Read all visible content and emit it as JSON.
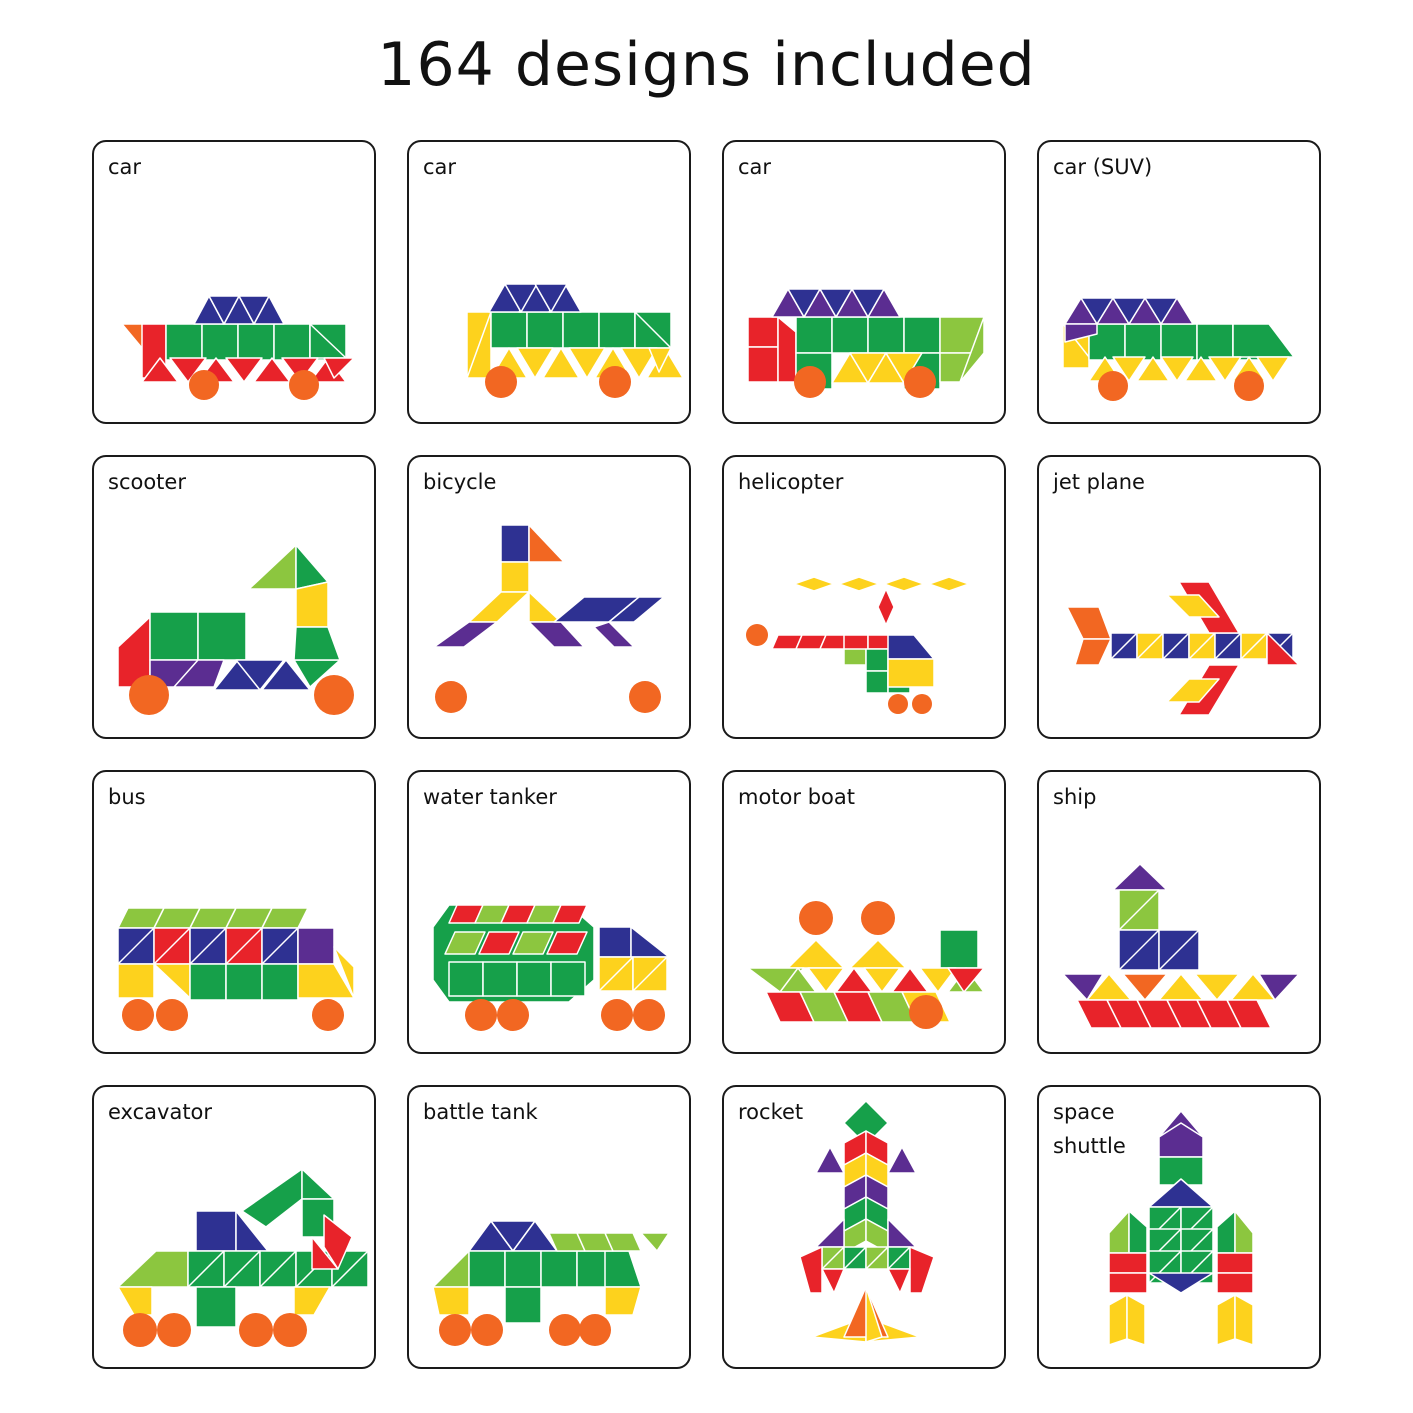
{
  "title": "164 designs included",
  "palette": {
    "red": "#e8232a",
    "orange": "#f26722",
    "yellow": "#fdd21d",
    "green": "#16a04a",
    "lime": "#8cc63f",
    "blue": "#2e3192",
    "purple": "#5b2d91"
  },
  "cards": [
    {
      "label": "car",
      "icon": "car-icon"
    },
    {
      "label": "car",
      "icon": "car-icon"
    },
    {
      "label": "car",
      "icon": "car-icon"
    },
    {
      "label": "car (SUV)",
      "icon": "suv-icon"
    },
    {
      "label": "scooter",
      "icon": "scooter-icon"
    },
    {
      "label": "bicycle",
      "icon": "bicycle-icon"
    },
    {
      "label": "helicopter",
      "icon": "helicopter-icon"
    },
    {
      "label": "jet plane",
      "icon": "jet-plane-icon"
    },
    {
      "label": "bus",
      "icon": "bus-icon"
    },
    {
      "label": "water tanker",
      "icon": "water-tanker-icon"
    },
    {
      "label": "motor boat",
      "icon": "motor-boat-icon"
    },
    {
      "label": "ship",
      "icon": "ship-icon"
    },
    {
      "label": "excavator",
      "icon": "excavator-icon"
    },
    {
      "label": "battle tank",
      "icon": "battle-tank-icon"
    },
    {
      "label": "rocket",
      "icon": "rocket-icon"
    },
    {
      "label": "space\nshuttle",
      "icon": "space-shuttle-icon"
    }
  ]
}
